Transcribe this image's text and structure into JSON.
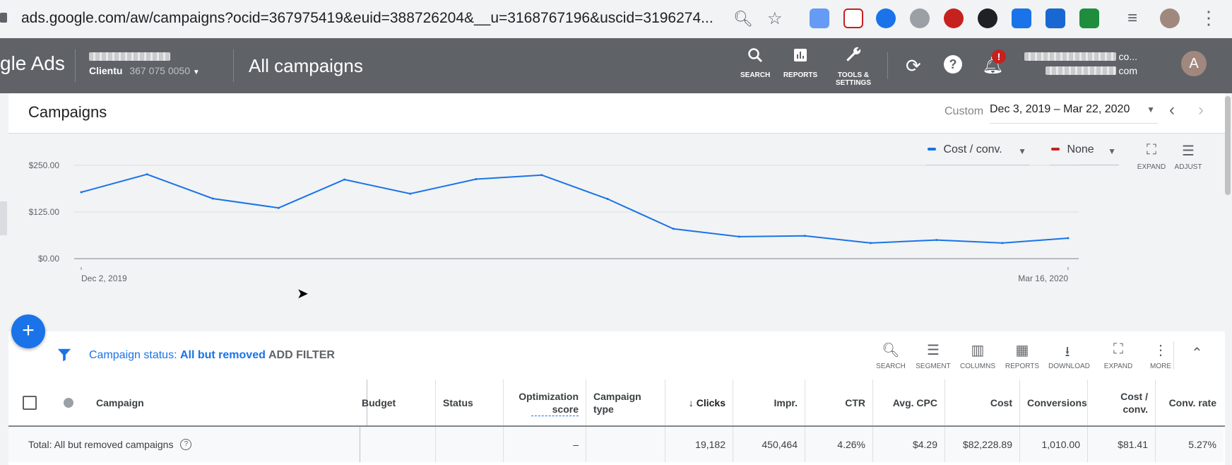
{
  "browser": {
    "url": "ads.google.com/aw/campaigns?ocid=367975419&euid=388726204&__u=3168767196&uscid=3196274..."
  },
  "header": {
    "logo": "gle Ads",
    "account_name_partial": "Clientu",
    "account_id_partial": "367 075 0050",
    "page_title": "All campaigns",
    "nav": {
      "search": "SEARCH",
      "reports": "REPORTS",
      "tools_line1": "TOOLS &",
      "tools_line2": "SETTINGS"
    },
    "notification_badge": "!",
    "user_email_suffix1": "co...",
    "user_email_suffix2": "com",
    "avatar_letter": "A"
  },
  "campaigns_bar": {
    "title": "Campaigns",
    "date_label": "Custom",
    "date_range": "Dec 3, 2019 – Mar 22, 2020"
  },
  "chart_controls": {
    "metric1": "Cost / conv.",
    "metric2": "None",
    "expand": "EXPAND",
    "adjust": "ADJUST",
    "metric1_color": "#1a73e8",
    "metric2_color": "#c5221f"
  },
  "chart_data": {
    "type": "line",
    "title": "",
    "xlabel": "",
    "ylabel": "",
    "x_tick_labels": [
      "Dec 2, 2019",
      "Mar 16, 2020"
    ],
    "y_tick_labels": [
      "$250.00",
      "$125.00",
      "$0.00"
    ],
    "ylim": [
      0,
      250
    ],
    "grid": true,
    "series": [
      {
        "name": "Cost / conv.",
        "color": "#1a73e8",
        "x": [
          "Dec 2, 2019",
          "Dec 9, 2019",
          "Dec 16, 2019",
          "Dec 23, 2019",
          "Dec 30, 2019",
          "Jan 6, 2020",
          "Jan 13, 2020",
          "Jan 20, 2020",
          "Jan 27, 2020",
          "Feb 3, 2020",
          "Feb 10, 2020",
          "Feb 17, 2020",
          "Feb 24, 2020",
          "Mar 2, 2020",
          "Mar 9, 2020",
          "Mar 16, 2020"
        ],
        "values": [
          178,
          226,
          161,
          136,
          212,
          174,
          213,
          224,
          160,
          80,
          59,
          61,
          42,
          50,
          42,
          55
        ]
      }
    ]
  },
  "filterbar": {
    "status_prefix": "Campaign status:",
    "status_value": "All but removed",
    "add_filter": "ADD FILTER",
    "tools": [
      "SEARCH",
      "SEGMENT",
      "COLUMNS",
      "REPORTS",
      "DOWNLOAD",
      "EXPAND",
      "MORE"
    ]
  },
  "table": {
    "columns": {
      "campaign": "Campaign",
      "budget": "Budget",
      "status": "Status",
      "opt_line1": "Optimization",
      "opt_line2": "score",
      "type_line1": "Campaign",
      "type_line2": "type",
      "clicks": "Clicks",
      "impr": "Impr.",
      "ctr": "CTR",
      "avg_cpc": "Avg. CPC",
      "cost": "Cost",
      "conversions": "Conversions",
      "costconv_line1": "Cost /",
      "costconv_line2": "conv.",
      "conv_rate": "Conv. rate"
    },
    "total_row": {
      "label": "Total: All but removed campaigns",
      "opt_score": "–",
      "clicks": "19,182",
      "impr": "450,464",
      "ctr": "4.26%",
      "avg_cpc": "$4.29",
      "cost": "$82,228.89",
      "conversions": "1,010.00",
      "cost_conv": "$81.41",
      "conv_rate": "5.27%"
    }
  }
}
